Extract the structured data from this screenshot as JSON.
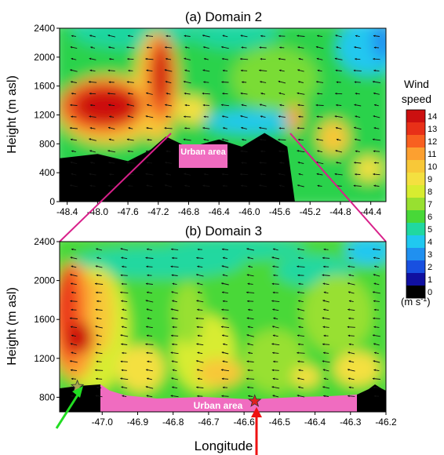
{
  "chart_data": [
    {
      "type": "heatmap",
      "title": "(a) Domain 2",
      "xlabel": "",
      "ylabel": "Height (m asl)",
      "xlim": [
        -48.5,
        -44.2
      ],
      "ylim": [
        0,
        2400
      ],
      "x_ticks": [
        -48.4,
        -48.0,
        -47.6,
        -47.2,
        -46.8,
        -46.4,
        -46.0,
        -45.6,
        -45.2,
        -44.8,
        -44.4
      ],
      "y_ticks": [
        0,
        400,
        800,
        1200,
        1600,
        2000,
        2400
      ],
      "annotation": "Urban area",
      "high_wind_core": {
        "lon_range": [
          -48.4,
          -47.4
        ],
        "height_range": [
          1000,
          1600
        ],
        "speed": 14
      },
      "terrain": [
        [
          -48.5,
          600
        ],
        [
          -48.0,
          660
        ],
        [
          -47.6,
          560
        ],
        [
          -47.3,
          720
        ],
        [
          -47.1,
          900
        ],
        [
          -46.8,
          750
        ],
        [
          -46.4,
          860
        ],
        [
          -46.1,
          760
        ],
        [
          -45.8,
          950
        ],
        [
          -45.5,
          760
        ],
        [
          -45.4,
          0
        ],
        [
          -44.2,
          0
        ]
      ]
    },
    {
      "type": "heatmap",
      "title": "(b) Domain 3",
      "xlabel": "Longitude",
      "ylabel": "Height (m asl)",
      "xlim": [
        -47.12,
        -46.2
      ],
      "ylim": [
        650,
        2400
      ],
      "x_ticks": [
        -47.0,
        -46.9,
        -46.8,
        -46.7,
        -46.6,
        -46.5,
        -46.4,
        -46.3,
        -46.2
      ],
      "y_ticks": [
        800,
        1200,
        1600,
        2000,
        2400
      ],
      "annotation": "Urban area",
      "high_wind_core": {
        "lon_range": [
          -47.12,
          -46.95
        ],
        "height_range": [
          1100,
          2000
        ],
        "speed": 13
      },
      "markers": [
        {
          "shape": "star",
          "color": "#a8a850",
          "lon": -47.07,
          "height": 910
        },
        {
          "shape": "star",
          "color": "#e02020",
          "lon": -46.57,
          "height": 760
        }
      ]
    }
  ],
  "colorbar": {
    "title_line1": "Wind",
    "title_line2": "speed",
    "ticks": [
      "14",
      "13",
      "12",
      "11",
      "10",
      "9",
      "8",
      "7",
      "6",
      "5",
      "4",
      "3",
      "2",
      "1",
      "0"
    ],
    "unit": "(m s",
    "unit_sup": "-1",
    "unit_close": ")",
    "colors": [
      "#cc1010",
      "#e83018",
      "#f86020",
      "#fca030",
      "#f8c838",
      "#f4e040",
      "#d8ec30",
      "#98e030",
      "#48d838",
      "#20d8a0",
      "#20c8f0",
      "#2090f0",
      "#1850e0",
      "#1010a0",
      "#000000"
    ]
  }
}
